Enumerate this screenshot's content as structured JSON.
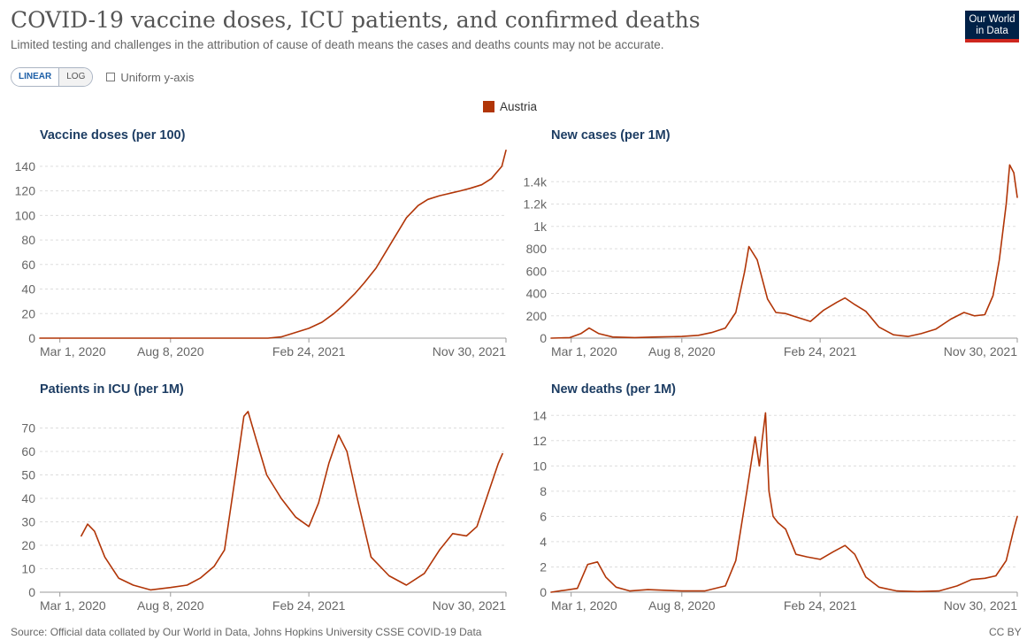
{
  "header": {
    "title": "COVID-19 vaccine doses, ICU patients, and confirmed deaths",
    "subtitle": "Limited testing and challenges in the attribution of cause of death means the cases and deaths counts may not be accurate.",
    "logo_line1": "Our World",
    "logo_line2": "in Data"
  },
  "controls": {
    "linear_label": "LINEAR",
    "log_label": "LOG",
    "uniform_label": "Uniform y-axis"
  },
  "legend": {
    "label": "Austria",
    "color": "#b13507"
  },
  "footer": {
    "source": "Source: Official data collated by Our World in Data, Johns Hopkins University CSSE COVID-19 Data",
    "license": "CC BY"
  },
  "chart_data": [
    {
      "type": "line",
      "title": "Vaccine doses (per 100)",
      "xtick_labels": [
        "Mar 1, 2020",
        "Aug 8, 2020",
        "Feb 24, 2021",
        "Nov 30, 2021"
      ],
      "xlim": [
        "2020-02-01",
        "2021-12-06"
      ],
      "ylim": [
        0,
        150
      ],
      "yticks": [
        0,
        20,
        40,
        60,
        80,
        100,
        120,
        140
      ],
      "ytick_labels": [
        "0",
        "20",
        "40",
        "60",
        "80",
        "100",
        "120",
        "140"
      ],
      "series": [
        {
          "name": "Austria",
          "x": [
            "2020-02-01",
            "2020-12-27",
            "2021-01-15",
            "2021-02-01",
            "2021-02-24",
            "2021-03-15",
            "2021-04-01",
            "2021-04-15",
            "2021-05-01",
            "2021-05-15",
            "2021-06-01",
            "2021-06-15",
            "2021-07-01",
            "2021-07-15",
            "2021-08-01",
            "2021-08-15",
            "2021-09-01",
            "2021-10-01",
            "2021-10-15",
            "2021-11-01",
            "2021-11-15",
            "2021-11-30",
            "2021-12-06"
          ],
          "y": [
            0,
            0,
            1,
            4,
            8,
            13,
            20,
            27,
            36,
            45,
            57,
            70,
            85,
            98,
            108,
            113,
            116,
            120,
            122,
            125,
            130,
            140,
            153
          ]
        }
      ]
    },
    {
      "type": "line",
      "title": "New cases (per 1M)",
      "xtick_labels": [
        "Mar 1, 2020",
        "Aug 8, 2020",
        "Feb 24, 2021",
        "Nov 30, 2021"
      ],
      "xlim": [
        "2020-02-01",
        "2021-12-06"
      ],
      "ylim": [
        0,
        1600
      ],
      "yticks": [
        0,
        200,
        400,
        600,
        800,
        1000,
        1200,
        1400
      ],
      "ytick_labels": [
        "0",
        "200",
        "400",
        "600",
        "800",
        "1k",
        "1.2k",
        "1.4k"
      ],
      "series": [
        {
          "name": "Austria",
          "x": [
            "2020-02-01",
            "2020-02-28",
            "2020-03-15",
            "2020-03-27",
            "2020-04-10",
            "2020-04-30",
            "2020-06-01",
            "2020-07-01",
            "2020-08-08",
            "2020-09-01",
            "2020-09-20",
            "2020-10-10",
            "2020-10-25",
            "2020-11-07",
            "2020-11-13",
            "2020-11-25",
            "2020-12-10",
            "2020-12-22",
            "2021-01-05",
            "2021-01-20",
            "2021-02-10",
            "2021-03-01",
            "2021-03-20",
            "2021-04-01",
            "2021-04-15",
            "2021-05-01",
            "2021-05-20",
            "2021-06-10",
            "2021-07-01",
            "2021-07-20",
            "2021-08-10",
            "2021-09-01",
            "2021-09-20",
            "2021-10-05",
            "2021-10-20",
            "2021-11-01",
            "2021-11-10",
            "2021-11-20",
            "2021-11-25",
            "2021-12-01",
            "2021-12-06"
          ],
          "y": [
            0,
            5,
            40,
            90,
            40,
            10,
            5,
            10,
            15,
            25,
            50,
            90,
            230,
            600,
            820,
            700,
            350,
            230,
            220,
            190,
            150,
            250,
            320,
            360,
            300,
            240,
            100,
            30,
            15,
            40,
            80,
            170,
            230,
            200,
            210,
            380,
            700,
            1200,
            1550,
            1480,
            1260
          ]
        }
      ]
    },
    {
      "type": "line",
      "title": "Patients in ICU (per 1M)",
      "xtick_labels": [
        "Mar 1, 2020",
        "Aug 8, 2020",
        "Feb 24, 2021",
        "Nov 30, 2021"
      ],
      "xlim": [
        "2020-02-01",
        "2021-12-06"
      ],
      "ylim": [
        0,
        80
      ],
      "yticks": [
        0,
        10,
        20,
        30,
        40,
        50,
        60,
        70
      ],
      "ytick_labels": [
        "0",
        "10",
        "20",
        "30",
        "40",
        "50",
        "60",
        "70"
      ],
      "series": [
        {
          "name": "Austria",
          "x": [
            "2020-04-01",
            "2020-04-10",
            "2020-04-20",
            "2020-05-05",
            "2020-05-25",
            "2020-06-15",
            "2020-07-10",
            "2020-08-08",
            "2020-09-01",
            "2020-09-20",
            "2020-10-10",
            "2020-10-25",
            "2020-11-10",
            "2020-11-22",
            "2020-11-28",
            "2020-12-10",
            "2020-12-25",
            "2021-01-15",
            "2021-02-05",
            "2021-02-24",
            "2021-03-10",
            "2021-03-25",
            "2021-04-08",
            "2021-04-20",
            "2021-05-05",
            "2021-05-25",
            "2021-06-20",
            "2021-07-15",
            "2021-08-10",
            "2021-09-01",
            "2021-09-20",
            "2021-10-10",
            "2021-10-25",
            "2021-11-10",
            "2021-11-25",
            "2021-12-01"
          ],
          "y": [
            24,
            29,
            26,
            15,
            6,
            3,
            1,
            2,
            3,
            6,
            11,
            18,
            50,
            75,
            77,
            65,
            50,
            40,
            32,
            28,
            38,
            55,
            67,
            60,
            40,
            15,
            7,
            3,
            8,
            18,
            25,
            24,
            28,
            42,
            55,
            59
          ]
        }
      ]
    },
    {
      "type": "line",
      "title": "New deaths (per 1M)",
      "xtick_labels": [
        "Mar 1, 2020",
        "Aug 8, 2020",
        "Feb 24, 2021",
        "Nov 30, 2021"
      ],
      "xlim": [
        "2020-02-01",
        "2021-12-06"
      ],
      "ylim": [
        0,
        15
      ],
      "yticks": [
        0,
        2,
        4,
        6,
        8,
        10,
        12,
        14
      ],
      "ytick_labels": [
        "0",
        "2",
        "4",
        "6",
        "8",
        "10",
        "12",
        "14"
      ],
      "series": [
        {
          "name": "Austria",
          "x": [
            "2020-02-01",
            "2020-03-10",
            "2020-03-25",
            "2020-04-08",
            "2020-04-20",
            "2020-05-05",
            "2020-05-25",
            "2020-06-20",
            "2020-08-08",
            "2020-09-10",
            "2020-10-10",
            "2020-10-25",
            "2020-11-10",
            "2020-11-22",
            "2020-11-28",
            "2020-12-02",
            "2020-12-07",
            "2020-12-12",
            "2020-12-18",
            "2020-12-25",
            "2021-01-05",
            "2021-01-20",
            "2021-02-05",
            "2021-02-24",
            "2021-03-15",
            "2021-04-01",
            "2021-04-15",
            "2021-05-01",
            "2021-05-20",
            "2021-06-15",
            "2021-07-15",
            "2021-08-15",
            "2021-09-10",
            "2021-10-01",
            "2021-10-20",
            "2021-11-05",
            "2021-11-20",
            "2021-12-01",
            "2021-12-06"
          ],
          "y": [
            0,
            0.3,
            2.2,
            2.4,
            1.2,
            0.4,
            0.1,
            0.2,
            0.1,
            0.1,
            0.5,
            2.5,
            8,
            12.3,
            10,
            12,
            14.2,
            8,
            6,
            5.5,
            5,
            3,
            2.8,
            2.6,
            3.2,
            3.7,
            3,
            1.2,
            0.4,
            0.1,
            0.05,
            0.1,
            0.5,
            1,
            1.1,
            1.3,
            2.5,
            5,
            6
          ]
        }
      ]
    }
  ]
}
